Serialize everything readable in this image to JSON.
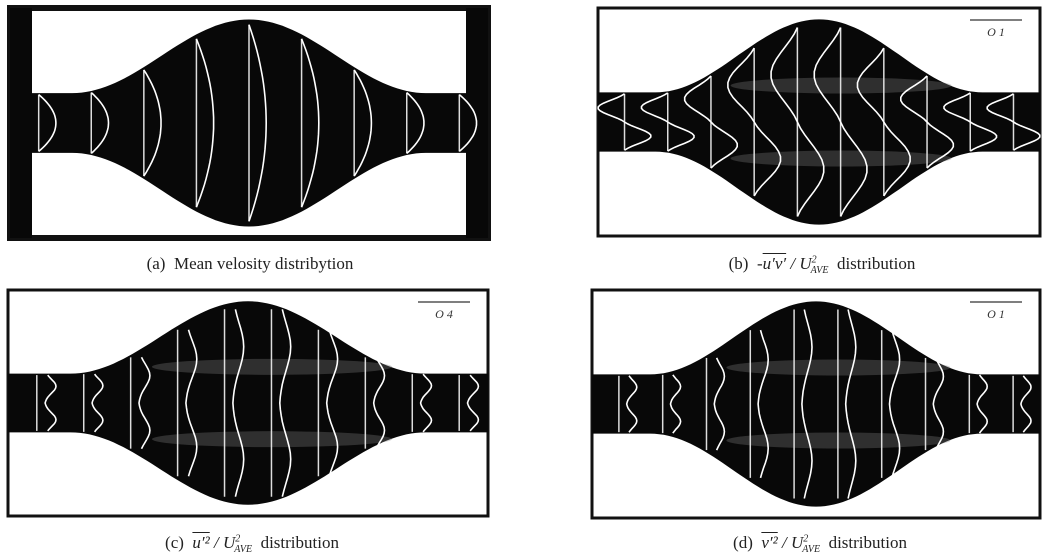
{
  "figure": {
    "panels": [
      {
        "caption": {
          "label": "(a)",
          "text": "Mean velosity distribytion"
        }
      },
      {
        "scale": "O 1",
        "caption": {
          "label": "(b)",
          "prefix": "-",
          "overline": "u′v′",
          "divisor": "/ U",
          "sup": "2",
          "sub": "AVE",
          "text": "distribution"
        }
      },
      {
        "scale": "O 4",
        "caption": {
          "label": "(c)",
          "overline": "u′²",
          "divisor": "/ U",
          "sup": "2",
          "sub": "AVE",
          "text": "distribution"
        }
      },
      {
        "scale": "O 1",
        "caption": {
          "label": "(d)",
          "overline": "v′²",
          "divisor": "/ U",
          "sup": "2",
          "sub": "AVE",
          "text": "distribution"
        }
      }
    ]
  }
}
